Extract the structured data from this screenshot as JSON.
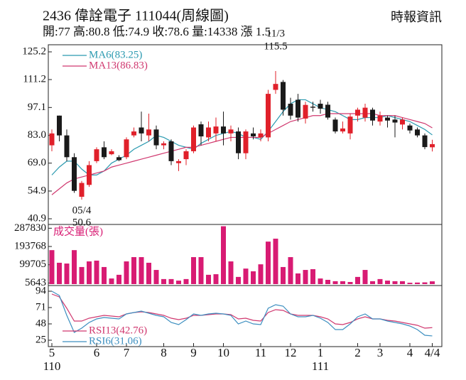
{
  "chart_data": [
    {
      "type": "candlestick",
      "title": "2436 偉詮電子 111044(周線圖)",
      "subtitle": "開:77 高:80.8 低:74.9 收:78.6 量:14338 漲 1.5",
      "source": "時報資訊",
      "categories": [
        "5",
        null,
        null,
        null,
        null,
        null,
        "6",
        null,
        null,
        null,
        "7",
        null,
        null,
        null,
        null,
        "8",
        null,
        null,
        null,
        "9",
        null,
        null,
        null,
        "10",
        null,
        null,
        null,
        null,
        "11",
        null,
        null,
        null,
        "12",
        null,
        null,
        null,
        "1",
        null,
        null,
        null,
        null,
        "2",
        null,
        null,
        "3",
        null,
        null,
        null,
        "4",
        null,
        null,
        "4/4"
      ],
      "year_labels": [
        "110",
        null,
        null,
        null,
        null,
        null,
        null,
        null,
        null,
        null,
        null,
        null,
        null,
        null,
        null,
        null,
        null,
        null,
        null,
        null,
        null,
        null,
        null,
        null,
        null,
        null,
        null,
        null,
        null,
        null,
        null,
        null,
        null,
        null,
        null,
        null,
        "111",
        null,
        null,
        null,
        null,
        null,
        null,
        null,
        null,
        null,
        null,
        null,
        null,
        null,
        null,
        null
      ],
      "open": [
        78,
        93,
        83,
        72,
        52,
        58,
        70,
        77,
        73.5,
        72,
        72,
        83,
        87,
        83,
        86,
        78,
        80,
        69,
        71,
        75,
        88.6,
        82,
        84,
        87.5,
        84,
        85,
        74,
        84,
        82,
        82,
        106,
        110,
        99,
        101,
        91.5,
        97.5,
        99,
        98.5,
        91,
        85,
        84,
        93,
        92,
        96,
        90,
        92,
        91,
        88.5,
        88,
        86,
        83,
        77
      ],
      "high": [
        86,
        93,
        86,
        74,
        60,
        70,
        77,
        80,
        76,
        73,
        82,
        87,
        95,
        94,
        88,
        80,
        81,
        71,
        76,
        88,
        90,
        90,
        92,
        95,
        88,
        87,
        86,
        87,
        86,
        106,
        115.5,
        111,
        102,
        104,
        100,
        100,
        101,
        100,
        92,
        90,
        94,
        97,
        99,
        97,
        95,
        93,
        93,
        92,
        89,
        87,
        84,
        80.8
      ],
      "low": [
        75,
        80,
        70,
        54,
        50.6,
        57,
        69,
        71,
        73,
        70,
        71,
        82,
        80,
        80,
        76,
        76,
        68,
        65,
        68,
        74,
        78,
        80,
        80,
        78,
        80,
        71,
        71,
        81,
        80,
        80,
        104,
        93,
        91,
        90,
        89,
        95,
        94,
        91,
        84,
        84,
        81,
        90,
        90,
        88,
        88,
        87,
        82,
        86,
        84,
        82,
        76,
        74.9
      ],
      "close": [
        84,
        83,
        72,
        55,
        59,
        68,
        76,
        72,
        75,
        70.5,
        81,
        85,
        84,
        86,
        78,
        79,
        70,
        70,
        75,
        87,
        82.5,
        87,
        87.5,
        84,
        86,
        74,
        85,
        82.5,
        84,
        104,
        109,
        96,
        93,
        92,
        98.4,
        97,
        96.5,
        92,
        85,
        86.5,
        92.5,
        96,
        97,
        90.5,
        93,
        90.5,
        89.5,
        91,
        85.5,
        83,
        77.1,
        78.6
      ],
      "up_color": "#e0202a",
      "down_color": "#1a1a1a",
      "series": [
        {
          "name": "MA6(83.25)",
          "color": "#2b9ab0",
          "values": [
            63,
            67,
            70,
            70,
            66,
            63,
            63,
            65,
            69,
            71,
            73,
            76,
            78,
            80,
            83,
            82,
            80,
            78,
            77,
            76,
            79,
            81,
            83,
            84,
            85,
            84,
            82,
            82,
            81,
            85,
            90,
            95,
            99,
            101,
            101,
            99,
            97,
            96,
            95,
            93,
            91,
            91,
            92,
            92,
            92,
            93,
            92,
            91,
            90,
            88,
            86,
            83.25
          ]
        },
        {
          "name": "MA13(86.83)",
          "color": "#d0386f",
          "values": [
            53,
            56,
            59,
            61,
            62,
            63,
            64,
            65,
            67,
            68,
            69,
            70,
            71,
            72,
            73,
            74,
            75,
            76,
            77,
            77,
            78,
            79,
            80,
            81,
            82,
            82,
            82,
            82,
            82,
            84,
            86,
            88,
            90,
            91,
            92,
            93,
            93,
            94,
            94,
            94,
            94,
            94,
            94,
            94,
            93,
            93,
            93,
            92,
            91,
            90,
            89,
            86.83
          ]
        }
      ],
      "annotations": [
        {
          "text": "11/3",
          "value": 115.5
        },
        {
          "text": "05/4",
          "value": 50.6
        }
      ],
      "ylim": [
        40.9,
        125.2
      ],
      "yticks": [
        125.2,
        111.2,
        97.1,
        {
          "value": 83,
          "label": "83.0"
        },
        {
          "value": 69,
          "label": "69.0"
        },
        54.9,
        40.9
      ]
    },
    {
      "type": "bar",
      "title": "成交量(張)",
      "color": "#d81b73",
      "values": [
        175000,
        110000,
        106000,
        175000,
        88000,
        117000,
        121000,
        88000,
        29000,
        48000,
        117000,
        139000,
        139000,
        110000,
        73000,
        26000,
        26000,
        18000,
        26000,
        139000,
        139000,
        48000,
        51000,
        298000,
        117000,
        37000,
        80000,
        66000,
        102000,
        219000,
        234000,
        88000,
        139000,
        55000,
        73000,
        77000,
        29000,
        22000,
        15000,
        15000,
        11000,
        37000,
        73000,
        15000,
        26000,
        18000,
        15000,
        15000,
        7000,
        8000,
        9000,
        14338
      ],
      "ylim": [
        0,
        300000
      ],
      "yticks": [
        287830,
        193768,
        99705,
        5643
      ]
    },
    {
      "type": "line",
      "series": [
        {
          "name": "RSI13(42.76)",
          "color": "#d0386f",
          "values": [
            90,
            86,
            70,
            52,
            52,
            56,
            58,
            60,
            59,
            58,
            62,
            64,
            65,
            64,
            62,
            60,
            56,
            54,
            56,
            60,
            60,
            61,
            62,
            62,
            61,
            55,
            56,
            53,
            52,
            64,
            68,
            67,
            62,
            60,
            60,
            60,
            58,
            55,
            48,
            47,
            50,
            55,
            58,
            55,
            55,
            53,
            52,
            50,
            48,
            46,
            42,
            42.76
          ]
        },
        {
          "name": "RSI6(31.06)",
          "color": "#3d8fc0",
          "values": [
            94,
            88,
            60,
            36,
            42,
            50,
            55,
            57,
            56,
            55,
            62,
            64,
            66,
            63,
            60,
            58,
            50,
            47,
            54,
            62,
            60,
            62,
            63,
            62,
            60,
            48,
            52,
            48,
            47,
            70,
            75,
            73,
            62,
            58,
            58,
            60,
            56,
            50,
            40,
            40,
            48,
            58,
            62,
            55,
            55,
            52,
            50,
            48,
            45,
            40,
            32,
            31.06
          ]
        }
      ],
      "ylim": [
        17,
        99
      ],
      "yticks": [
        94,
        71,
        48,
        25
      ]
    }
  ]
}
